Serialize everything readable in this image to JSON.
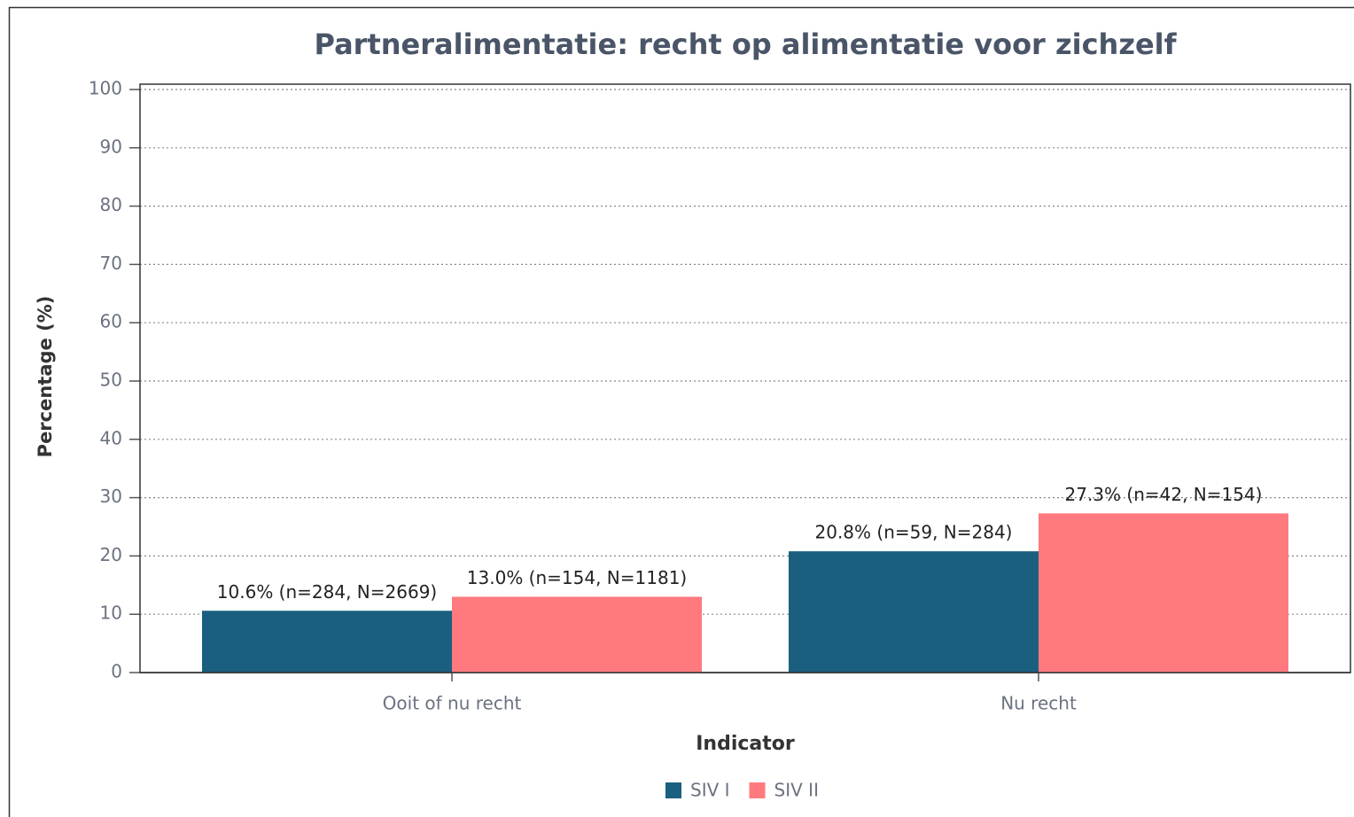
{
  "chart_data": {
    "type": "bar",
    "title": "Partneralimentatie: recht op alimentatie voor zichzelf",
    "x_label": "Indicator",
    "y_label": "Percentage (%)",
    "categories": [
      "Ooit of nu recht",
      "Nu recht"
    ],
    "series": [
      {
        "name": "SIV I",
        "color": "#1a5f80",
        "values": [
          10.6,
          20.8
        ],
        "value_labels": [
          "10.6% (n=284, N=2669)",
          "20.8% (n=59, N=284)"
        ]
      },
      {
        "name": "SIV II",
        "color": "#ff7a7e",
        "values": [
          13.0,
          27.3
        ],
        "value_labels": [
          "13.0% (n=154, N=1181)",
          "27.3% (n=42, N=154)"
        ]
      }
    ],
    "ylim": [
      0,
      100
    ],
    "yticks": [
      0,
      10,
      20,
      30,
      40,
      50,
      60,
      70,
      80,
      90,
      100
    ],
    "grid": true,
    "legend": "bottom"
  }
}
